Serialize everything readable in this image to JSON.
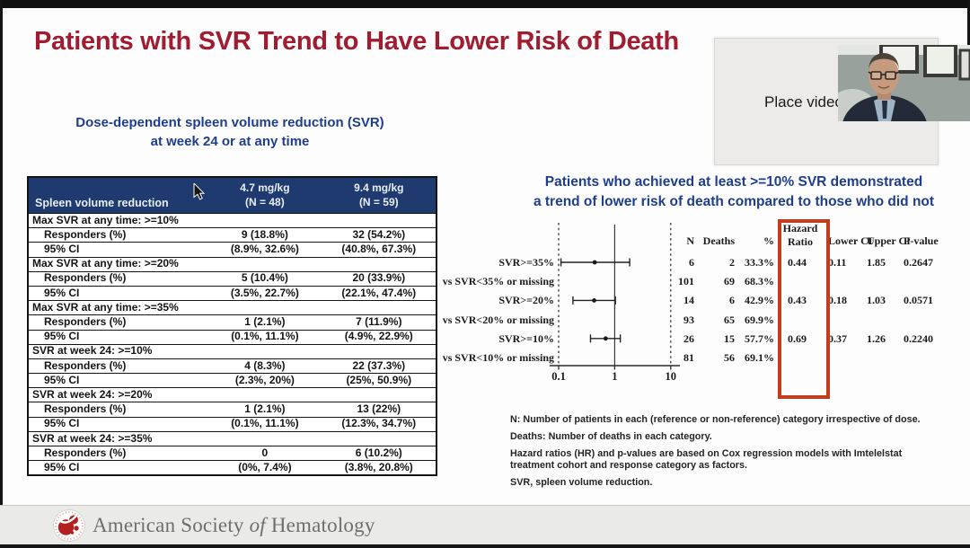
{
  "slide": {
    "title": "Patients with SVR Trend to Have Lower Risk of Death"
  },
  "left_panel": {
    "subtitle_line1": "Dose-dependent spleen volume reduction (SVR)",
    "subtitle_line2": "at week 24 or at any time",
    "table": {
      "col1_header": "Spleen volume reduction",
      "col2_header_line1": "4.7 mg/kg",
      "col2_header_line2": "(N = 48)",
      "col3_header_line1": "9.4 mg/kg",
      "col3_header_line2": "(N = 59)",
      "responders_label": "Responders (%)",
      "ci_label": "95% CI",
      "groups": [
        {
          "title": "Max SVR at any time: >=10%",
          "responders": [
            "9 (18.8%)",
            "32 (54.2%)"
          ],
          "ci": [
            "(8.9%, 32.6%)",
            "(40.8%, 67.3%)"
          ]
        },
        {
          "title": "Max SVR at any time: >=20%",
          "responders": [
            "5 (10.4%)",
            "20 (33.9%)"
          ],
          "ci": [
            "(3.5%, 22.7%)",
            "(22.1%, 47.4%)"
          ]
        },
        {
          "title": "Max SVR at any time: >=35%",
          "responders": [
            "1 (2.1%)",
            "7 (11.9%)"
          ],
          "ci": [
            "(0.1%, 11.1%)",
            "(4.9%, 22.9%)"
          ]
        },
        {
          "title": "SVR at week 24: >=10%",
          "responders": [
            "4 (8.3%)",
            "22 (37.3%)"
          ],
          "ci": [
            "(2.3%, 20%)",
            "(25%, 50.9%)"
          ]
        },
        {
          "title": "SVR at week 24: >=20%",
          "responders": [
            "1 (2.1%)",
            "13 (22%)"
          ],
          "ci": [
            "(0.1%, 11.1%)",
            "(12.3%, 34.7%)"
          ]
        },
        {
          "title": "SVR at week 24: >=35%",
          "responders": [
            "0",
            "6 (10.2%)"
          ],
          "ci": [
            "(0%, 7.4%)",
            "(3.8%, 20.8%)"
          ]
        }
      ]
    }
  },
  "right_panel": {
    "heading_line1": "Patients who achieved at least >=10% SVR demonstrated",
    "heading_line2": "a trend of lower risk of death compared to those who did not",
    "footnotes": [
      "N: Number of patients in each (reference or non-reference) category irrespective of dose.",
      "Deaths: Number of deaths in each category.",
      "Hazard ratios (HR) and p-values are based on Cox regression models with Imtelelstat treatment cohort and response category as factors.",
      "SVR, spleen volume reduction."
    ]
  },
  "chart_data": {
    "type": "scatter",
    "subtype": "forest-plot",
    "x_axis": {
      "scale": "log10",
      "ticks": [
        "0.1",
        "1",
        "10"
      ],
      "range": [
        0.1,
        10
      ],
      "reference_line": 1
    },
    "columns": {
      "n": "N",
      "deaths": "Deaths",
      "pct": "%",
      "hr_line1": "Hazard",
      "hr_line2": "Ratio",
      "lower": "Lower CI",
      "upper": "Upper CI",
      "p": "P-value"
    },
    "rows": [
      {
        "label": "SVR>=35%",
        "n": "6",
        "deaths": "2",
        "pct": "33.3%",
        "hr": 0.44,
        "lower": 0.11,
        "upper": 1.85,
        "p": "0.2647"
      },
      {
        "label": "vs SVR<35% or missing",
        "n": "101",
        "deaths": "69",
        "pct": "68.3%",
        "hr": null,
        "lower": null,
        "upper": null,
        "p": ""
      },
      {
        "label": "SVR>=20%",
        "n": "14",
        "deaths": "6",
        "pct": "42.9%",
        "hr": 0.43,
        "lower": 0.18,
        "upper": 1.03,
        "p": "0.0571"
      },
      {
        "label": "vs SVR<20% or missing",
        "n": "93",
        "deaths": "65",
        "pct": "69.9%",
        "hr": null,
        "lower": null,
        "upper": null,
        "p": ""
      },
      {
        "label": "SVR>=10%",
        "n": "26",
        "deaths": "15",
        "pct": "57.7%",
        "hr": 0.69,
        "lower": 0.37,
        "upper": 1.26,
        "p": "0.2240"
      },
      {
        "label": "vs SVR<10% or missing",
        "n": "81",
        "deaths": "56",
        "pct": "69.1%",
        "hr": null,
        "lower": null,
        "upper": null,
        "p": ""
      }
    ],
    "highlight_note": "Hazard Ratio column outlined with red box"
  },
  "video": {
    "placeholder_label": "Place video"
  },
  "footer": {
    "org_part1": "American Society",
    "org_part2": "of",
    "org_part3": "Hematology"
  },
  "colors": {
    "title_red": "#a01c30",
    "heading_blue": "#1e3d8c",
    "table_header_bg": "#1e3a6e",
    "red_box": "#c43b1d",
    "footer_bg": "#eaeae7"
  }
}
